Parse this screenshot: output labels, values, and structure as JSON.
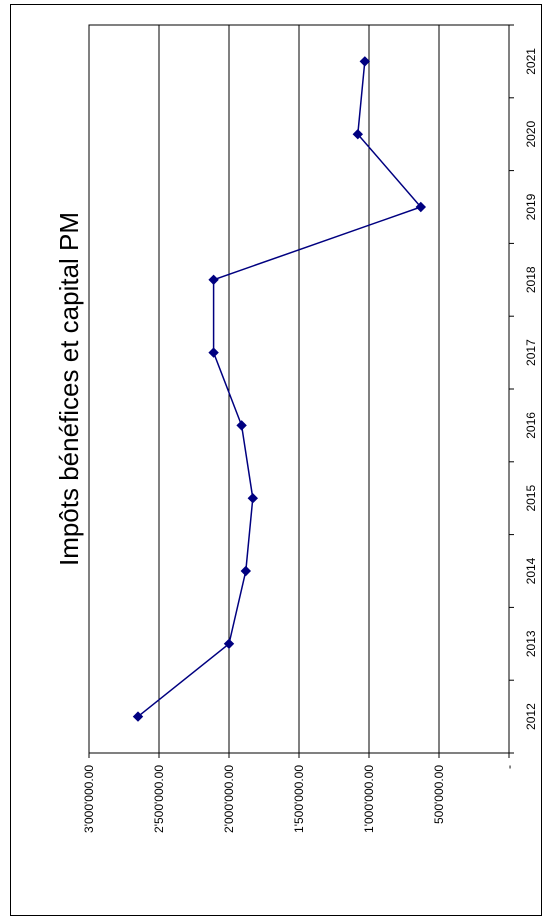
{
  "chart_data": {
    "type": "line",
    "title": "Impôts bénéfices et capital PM",
    "xlabel": "",
    "ylabel": "",
    "categories": [
      "2012",
      "2013",
      "2014",
      "2015",
      "2016",
      "2017",
      "2018",
      "2019",
      "2020",
      "2021"
    ],
    "series": [
      {
        "values": [
          2650000,
          2000000,
          1880000,
          1830000,
          1910000,
          2110000,
          2110000,
          630000,
          1080000,
          1030000
        ]
      }
    ],
    "ylim": [
      0,
      3000000
    ],
    "y_ticks": [
      "-",
      "500'000.00",
      "1'000'000.00",
      "1'500'000.00",
      "2'000'000.00",
      "2'500'000.00",
      "3'000'000.00"
    ],
    "grid": true,
    "orientation": "rotated-90",
    "line_color": "#000080",
    "marker": "diamond"
  }
}
